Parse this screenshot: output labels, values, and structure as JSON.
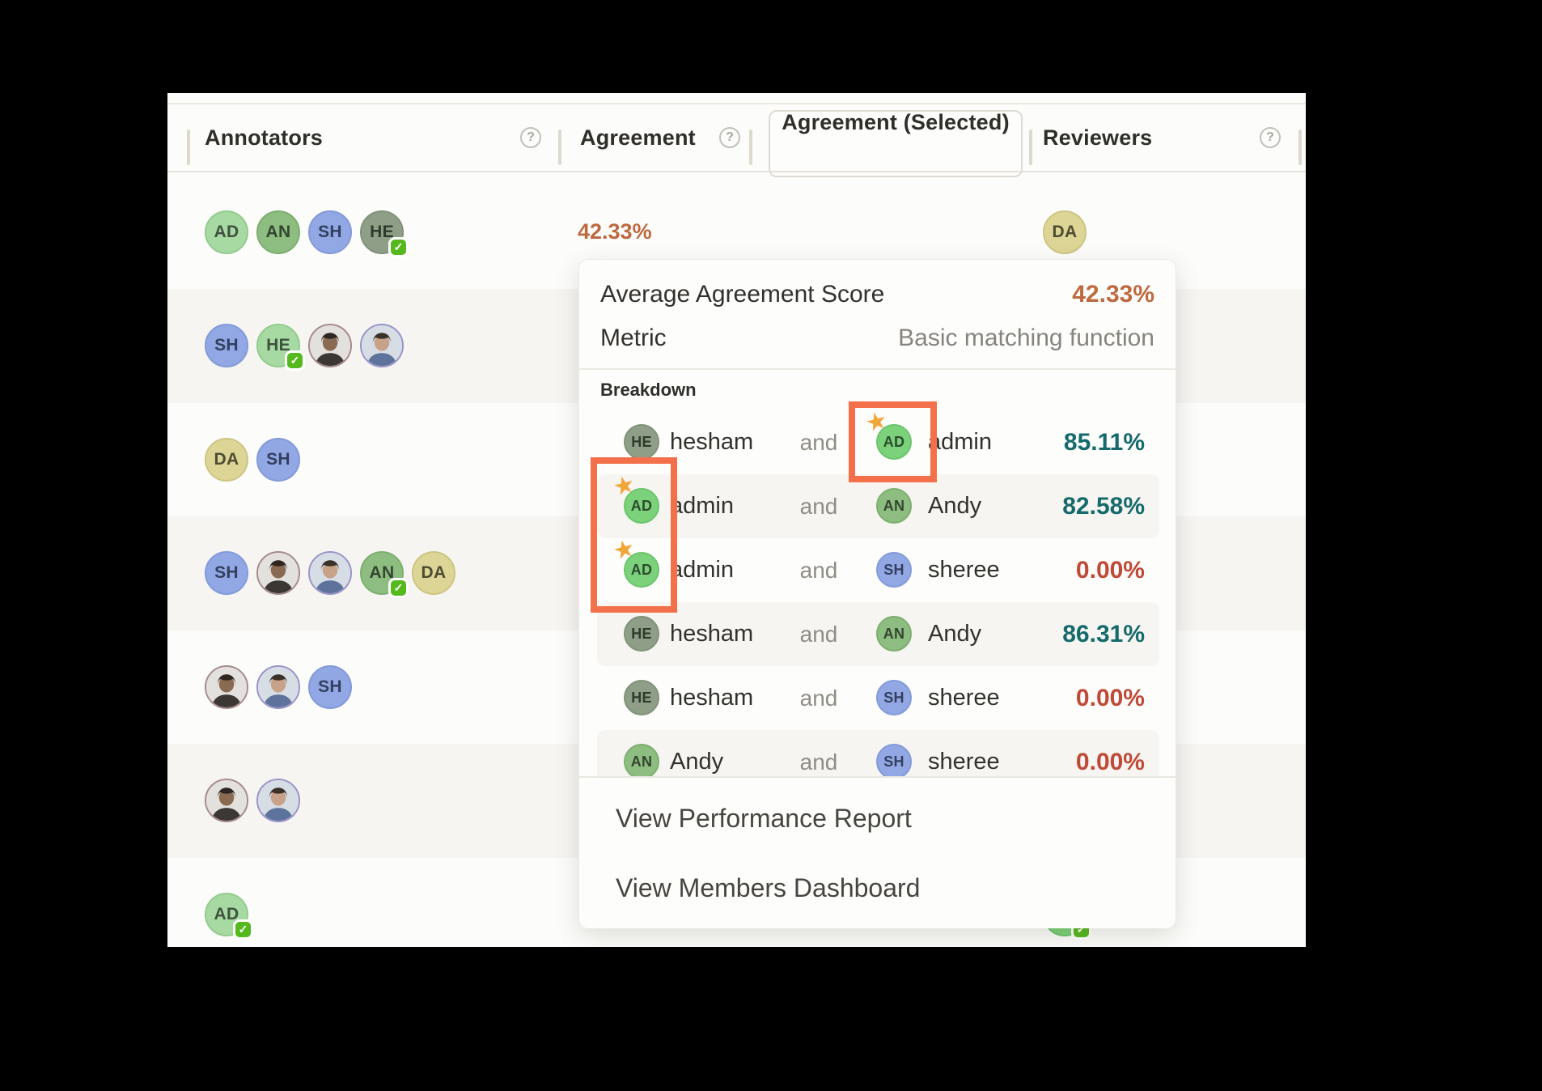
{
  "table": {
    "columns": [
      {
        "label": "Annotators",
        "has_help": true
      },
      {
        "label": "Agreement",
        "has_help": true
      },
      {
        "label": "Agreement (Selected)",
        "has_help": false,
        "selected": true
      },
      {
        "label": "Reviewers",
        "has_help": true
      }
    ],
    "help_icon_glyph": "?",
    "rows": [
      {
        "stripe": false,
        "annotators": [
          {
            "initials": "AD",
            "color": "green_light"
          },
          {
            "initials": "AN",
            "color": "green_mid"
          },
          {
            "initials": "SH",
            "color": "blue"
          },
          {
            "initials": "HE",
            "color": "olive",
            "verified": true
          }
        ],
        "agreement": "42.33%",
        "reviewers": [
          {
            "initials": "DA",
            "color": "khaki"
          }
        ]
      },
      {
        "stripe": true,
        "annotators": [
          {
            "initials": "SH",
            "color": "blue"
          },
          {
            "initials": "HE",
            "color": "green_light",
            "verified": true
          },
          {
            "photo": "photo_a"
          },
          {
            "photo": "photo_b"
          }
        ],
        "agreement": "",
        "reviewers": []
      },
      {
        "stripe": false,
        "annotators": [
          {
            "initials": "DA",
            "color": "khaki"
          },
          {
            "initials": "SH",
            "color": "blue"
          }
        ],
        "agreement": "",
        "reviewers": []
      },
      {
        "stripe": true,
        "annotators": [
          {
            "initials": "SH",
            "color": "blue"
          },
          {
            "photo": "photo_a"
          },
          {
            "photo": "photo_b"
          },
          {
            "initials": "AN",
            "color": "green_mid",
            "verified": true
          },
          {
            "initials": "DA",
            "color": "khaki"
          }
        ],
        "agreement": "",
        "reviewers": []
      },
      {
        "stripe": false,
        "annotators": [
          {
            "photo": "photo_a"
          },
          {
            "photo": "photo_b"
          },
          {
            "initials": "SH",
            "color": "blue"
          }
        ],
        "agreement": "",
        "reviewers": []
      },
      {
        "stripe": true,
        "annotators": [
          {
            "photo": "photo_a"
          },
          {
            "photo": "photo_b"
          }
        ],
        "agreement": "",
        "reviewers": []
      },
      {
        "stripe": false,
        "annotators": [
          {
            "initials": "AD",
            "color": "green_light",
            "verified": true
          }
        ],
        "agreement": "",
        "reviewers": [
          {
            "initials": "AD",
            "color": "green",
            "verified": true
          }
        ]
      }
    ]
  },
  "popup": {
    "average_label": "Average Agreement Score",
    "average_value": "42.33%",
    "metric_label": "Metric",
    "metric_value": "Basic matching function",
    "breakdown_label": "Breakdown",
    "conjunction": "and",
    "breakdown": [
      {
        "stripe": false,
        "left": {
          "initials": "HE",
          "name": "hesham",
          "color": "olive"
        },
        "right": {
          "initials": "AD",
          "name": "admin",
          "color": "green",
          "starred": true
        },
        "score": "85.11%",
        "tone": "teal"
      },
      {
        "stripe": true,
        "left": {
          "initials": "AD",
          "name": "admin",
          "color": "green",
          "starred": true
        },
        "right": {
          "initials": "AN",
          "name": "Andy",
          "color": "green_mid"
        },
        "score": "82.58%",
        "tone": "teal"
      },
      {
        "stripe": false,
        "left": {
          "initials": "AD",
          "name": "admin",
          "color": "green",
          "starred": true
        },
        "right": {
          "initials": "SH",
          "name": "sheree",
          "color": "blue"
        },
        "score": "0.00%",
        "tone": "red"
      },
      {
        "stripe": true,
        "left": {
          "initials": "HE",
          "name": "hesham",
          "color": "olive"
        },
        "right": {
          "initials": "AN",
          "name": "Andy",
          "color": "green_mid"
        },
        "score": "86.31%",
        "tone": "teal"
      },
      {
        "stripe": false,
        "left": {
          "initials": "HE",
          "name": "hesham",
          "color": "olive"
        },
        "right": {
          "initials": "SH",
          "name": "sheree",
          "color": "blue"
        },
        "score": "0.00%",
        "tone": "red"
      },
      {
        "stripe": true,
        "left": {
          "initials": "AN",
          "name": "Andy",
          "color": "green_mid"
        },
        "right": {
          "initials": "SH",
          "name": "sheree",
          "color": "blue"
        },
        "score": "0.00%",
        "tone": "red"
      }
    ],
    "links": [
      "View Performance Report",
      "View Members Dashboard"
    ]
  },
  "avatar_palette": {
    "green_light": {
      "bg": "#a7daa2",
      "border": "#93cb8f",
      "text": "#3f513f"
    },
    "green": {
      "bg": "#7bd27a",
      "border": "#6cc46c",
      "text": "#2e4a2e"
    },
    "green_mid": {
      "bg": "#8dbd80",
      "border": "#7daf70",
      "text": "#34452f"
    },
    "olive": {
      "bg": "#8f9f87",
      "border": "#81927a",
      "text": "#2f3a2c"
    },
    "blue": {
      "bg": "#92a8e4",
      "border": "#839ada",
      "text": "#333f5e"
    },
    "khaki": {
      "bg": "#dcd595",
      "border": "#cdc683",
      "text": "#4e4b33"
    },
    "photo_a": {
      "ring": "#a68a8d",
      "bg": "#e3e1de",
      "hair": "#2e2620",
      "skin": "#8a6a50",
      "shirt": "#3c3733"
    },
    "photo_b": {
      "ring": "#9a93c8",
      "bg": "#d7dde4",
      "hair": "#3a3128",
      "skin": "#c7a289",
      "shirt": "#5d739c"
    }
  },
  "colors": {
    "accent_orange": "#bd6a40",
    "score_teal": "#156a6b",
    "score_red": "#c04a37",
    "highlight_box": "#f3704a",
    "star": "#f1a63a",
    "verified_badge": "#55b91e",
    "row_stripe": "#f6f5f2",
    "panel_bg": "#fcfcfa"
  },
  "icons": {
    "verified_badge_glyph": "✓",
    "star_glyph": "★"
  }
}
